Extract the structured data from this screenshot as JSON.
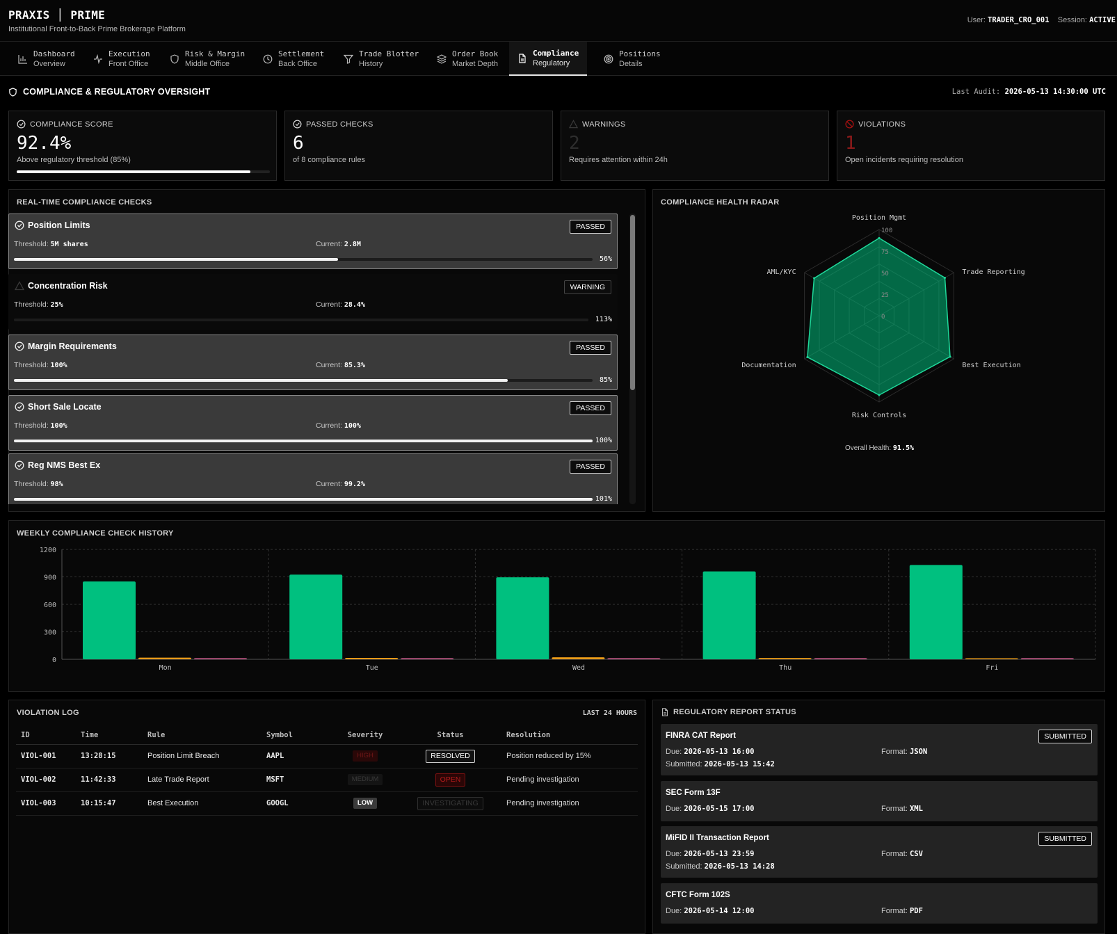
{
  "header": {
    "brand": "PRAXIS │ PRIME",
    "tagline": "Institutional Front-to-Back Prime Brokerage Platform",
    "user_label": "User:",
    "user": "TRADER_CRO_001",
    "session_label": "Session:",
    "session": "ACTIVE"
  },
  "nav": {
    "tabs": [
      {
        "title": "Dashboard",
        "subtitle": "Overview",
        "icon": "bar-chart-icon"
      },
      {
        "title": "Execution",
        "subtitle": "Front Office",
        "icon": "activity-icon"
      },
      {
        "title": "Risk & Margin",
        "subtitle": "Middle Office",
        "icon": "shield-icon"
      },
      {
        "title": "Settlement",
        "subtitle": "Back Office",
        "icon": "clock-icon"
      },
      {
        "title": "Trade Blotter",
        "subtitle": "History",
        "icon": "filter-icon"
      },
      {
        "title": "Order Book",
        "subtitle": "Market Depth",
        "icon": "layers-icon"
      },
      {
        "title": "Compliance",
        "subtitle": "Regulatory",
        "icon": "document-icon",
        "active": true
      },
      {
        "title": "Positions",
        "subtitle": "Details",
        "icon": "target-icon"
      }
    ]
  },
  "section": {
    "title": "COMPLIANCE & REGULATORY OVERSIGHT",
    "audit_label": "Last Audit:",
    "audit_value": "2026-05-13 14:30:00 UTC"
  },
  "cards": [
    {
      "label": "COMPLIANCE SCORE",
      "value": "92.4%",
      "sub": "Above regulatory threshold (85%)",
      "progress": 0.924,
      "icon": "check-circle-icon",
      "color": "#ffffff"
    },
    {
      "label": "PASSED CHECKS",
      "value": "6",
      "sub": "of 8 compliance rules",
      "icon": "check-circle-icon",
      "color": "#ffffff"
    },
    {
      "label": "WARNINGS",
      "value": "2",
      "sub": "Requires attention within 24h",
      "icon": "warning-icon",
      "color": "#2e2e2e"
    },
    {
      "label": "VIOLATIONS",
      "value": "1",
      "sub": "Open incidents requiring resolution",
      "icon": "ban-icon",
      "color": "#8b1a1a"
    }
  ],
  "checks_panel": {
    "title": "REAL-TIME COMPLIANCE CHECKS",
    "threshold_label": "Threshold:",
    "current_label": "Current:",
    "items": [
      {
        "name": "Position Limits",
        "status": "PASSED",
        "threshold": "5M shares",
        "current": "2.8M",
        "pct_label": "56%",
        "fill": 0.56
      },
      {
        "name": "Concentration Risk",
        "status": "WARNING",
        "threshold": "25%",
        "current": "28.4%",
        "pct_label": "113%",
        "fill": 1.0
      },
      {
        "name": "Margin Requirements",
        "status": "PASSED",
        "threshold": "100%",
        "current": "85.3%",
        "pct_label": "85%",
        "fill": 0.853
      },
      {
        "name": "Short Sale Locate",
        "status": "PASSED",
        "threshold": "100%",
        "current": "100%",
        "pct_label": "100%",
        "fill": 1.0
      },
      {
        "name": "Reg NMS Best Ex",
        "status": "PASSED",
        "threshold": "98%",
        "current": "99.2%",
        "pct_label": "101%",
        "fill": 1.0
      }
    ]
  },
  "radar_panel": {
    "title": "COMPLIANCE HEALTH RADAR",
    "overall_label": "Overall Health:",
    "overall_value": "91.5%"
  },
  "history_panel": {
    "title": "WEEKLY COMPLIANCE CHECK HISTORY"
  },
  "chart_data": [
    {
      "type": "radar",
      "axes": [
        "Position Mgmt",
        "Trade Reporting",
        "Best Execution",
        "Risk Controls",
        "Documentation",
        "AML/KYC"
      ],
      "values": [
        90,
        88,
        95,
        92,
        96,
        87
      ],
      "ticks": [
        "0",
        "25",
        "50",
        "75",
        "100"
      ],
      "range": [
        0,
        100
      ],
      "fill_color": "#00b97a"
    },
    {
      "type": "bar",
      "categories": [
        "Mon",
        "Tue",
        "Wed",
        "Thu",
        "Fri"
      ],
      "series": [
        {
          "values": [
            850,
            925,
            895,
            960,
            1030
          ],
          "color": "#00c07f"
        },
        {
          "values": [
            18,
            15,
            22,
            14,
            10
          ],
          "color": "#e89a19"
        },
        {
          "values": [
            6,
            4,
            8,
            3,
            2
          ],
          "color": "#e0659a"
        }
      ],
      "yticks": [
        "0",
        "300",
        "600",
        "900",
        "1200"
      ],
      "ylim": [
        0,
        1200
      ],
      "grid": true
    }
  ],
  "violation_log": {
    "title": "VIOLATION LOG",
    "range": "LAST 24 HOURS",
    "columns": [
      "ID",
      "Time",
      "Rule",
      "Symbol",
      "Severity",
      "Status",
      "Resolution"
    ],
    "rows": [
      {
        "id": "VIOL-001",
        "time": "13:28:15",
        "rule": "Position Limit Breach",
        "symbol": "AAPL",
        "severity": "HIGH",
        "status": "RESOLVED",
        "resolution": "Position reduced by 15%"
      },
      {
        "id": "VIOL-002",
        "time": "11:42:33",
        "rule": "Late Trade Report",
        "symbol": "MSFT",
        "severity": "MEDIUM",
        "status": "OPEN",
        "resolution": "Pending investigation"
      },
      {
        "id": "VIOL-003",
        "time": "10:15:47",
        "rule": "Best Execution",
        "symbol": "GOOGL",
        "severity": "LOW",
        "status": "INVESTIGATING",
        "resolution": "Pending investigation"
      }
    ]
  },
  "reports": {
    "title": "REGULATORY REPORT STATUS",
    "due_label": "Due:",
    "format_label": "Format:",
    "submitted_label": "Submitted:",
    "items": [
      {
        "name": "FINRA CAT Report",
        "status": "SUBMITTED",
        "due": "2026-05-13 16:00",
        "format": "JSON",
        "submitted": "2026-05-13 15:42"
      },
      {
        "name": "SEC Form 13F",
        "status": "",
        "due": "2026-05-15 17:00",
        "format": "XML",
        "submitted": ""
      },
      {
        "name": "MiFID II Transaction Report",
        "status": "SUBMITTED",
        "due": "2026-05-13 23:59",
        "format": "CSV",
        "submitted": "2026-05-13 14:28"
      },
      {
        "name": "CFTC Form 102S",
        "status": "",
        "due": "2026-05-14 12:00",
        "format": "PDF",
        "submitted": ""
      }
    ]
  }
}
